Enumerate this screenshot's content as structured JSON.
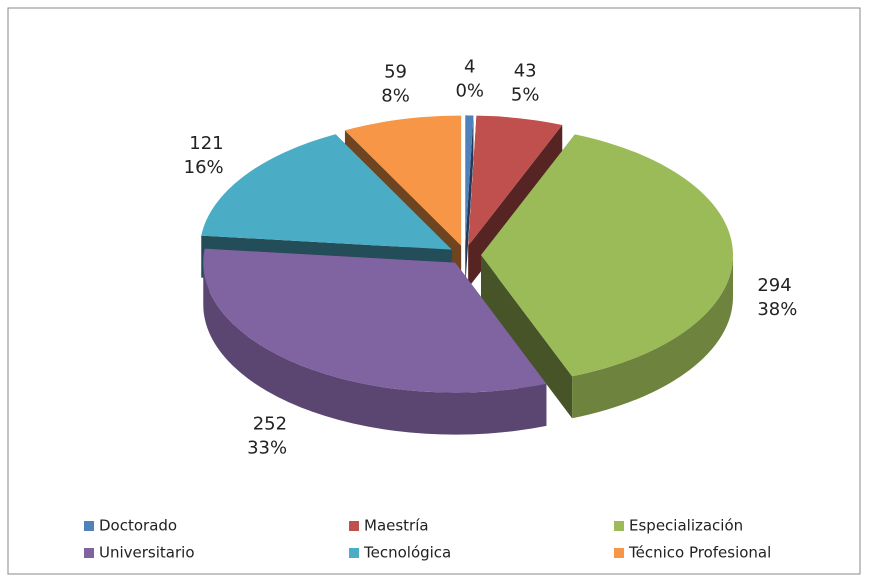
{
  "chart_data": {
    "type": "pie",
    "categories": [
      "Doctorado",
      "Maestría",
      "Especialización",
      "Universitario",
      "Tecnológica",
      "Técnico Profesional"
    ],
    "values": [
      4,
      43,
      294,
      252,
      121,
      59
    ],
    "percent_labels": [
      "0%",
      "5%",
      "38%",
      "33%",
      "16%",
      "8%"
    ],
    "colors": [
      "#4f81bd",
      "#c0504d",
      "#9bbb59",
      "#8064a2",
      "#4bacc6",
      "#f79646"
    ],
    "legend": "bottom"
  }
}
